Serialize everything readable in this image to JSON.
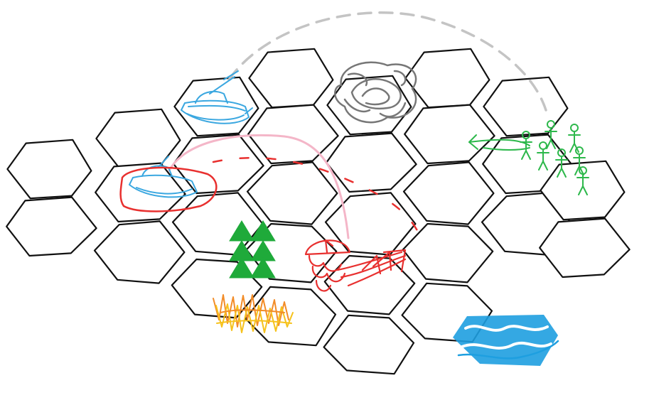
{
  "board": {
    "background": "#ffffff",
    "grid_line_color": "#111111"
  },
  "palette": {
    "tank_blue": "#3aa7e0",
    "selection_red": "#e8302f",
    "path_gray": "#c4c4c4",
    "path_pink": "#f4b6c8",
    "forest_green": "#1faa3a",
    "fire_orange": "#f28c28",
    "fire_yellow": "#f6c21c",
    "smoke_gray": "#777777",
    "water_blue": "#1e9fe0",
    "infantry_green": "#2db84b"
  },
  "units": [
    {
      "id": "tank-a",
      "kind": "tank",
      "icon": "tank-icon",
      "team": "blue",
      "selected": false
    },
    {
      "id": "tank-b",
      "kind": "tank",
      "icon": "tank-icon",
      "team": "blue",
      "selected": true
    },
    {
      "id": "red-unit",
      "kind": "artillery",
      "icon": "artillery-icon",
      "team": "red",
      "selected": false
    },
    {
      "id": "infantry-squad",
      "kind": "infantry",
      "icon": "infantry-icon",
      "team": "green",
      "count": 7
    }
  ],
  "terrain": [
    {
      "id": "forest",
      "icon": "forest-icon"
    },
    {
      "id": "fire",
      "icon": "fire-icon"
    },
    {
      "id": "smoke",
      "icon": "smoke-icon"
    },
    {
      "id": "water",
      "icon": "water-icon"
    }
  ],
  "paths": [
    {
      "id": "arc-gray",
      "style": "dashed",
      "color": "#c4c4c4",
      "from": "tank-a",
      "to": "infantry-squad"
    },
    {
      "id": "arc-pink",
      "style": "solid",
      "color": "#f4b6c8",
      "from": "tank-b",
      "to": "red-unit"
    },
    {
      "id": "arc-red",
      "style": "dashed",
      "color": "#e8302f",
      "from": "tank-b",
      "to": "red-unit"
    }
  ]
}
